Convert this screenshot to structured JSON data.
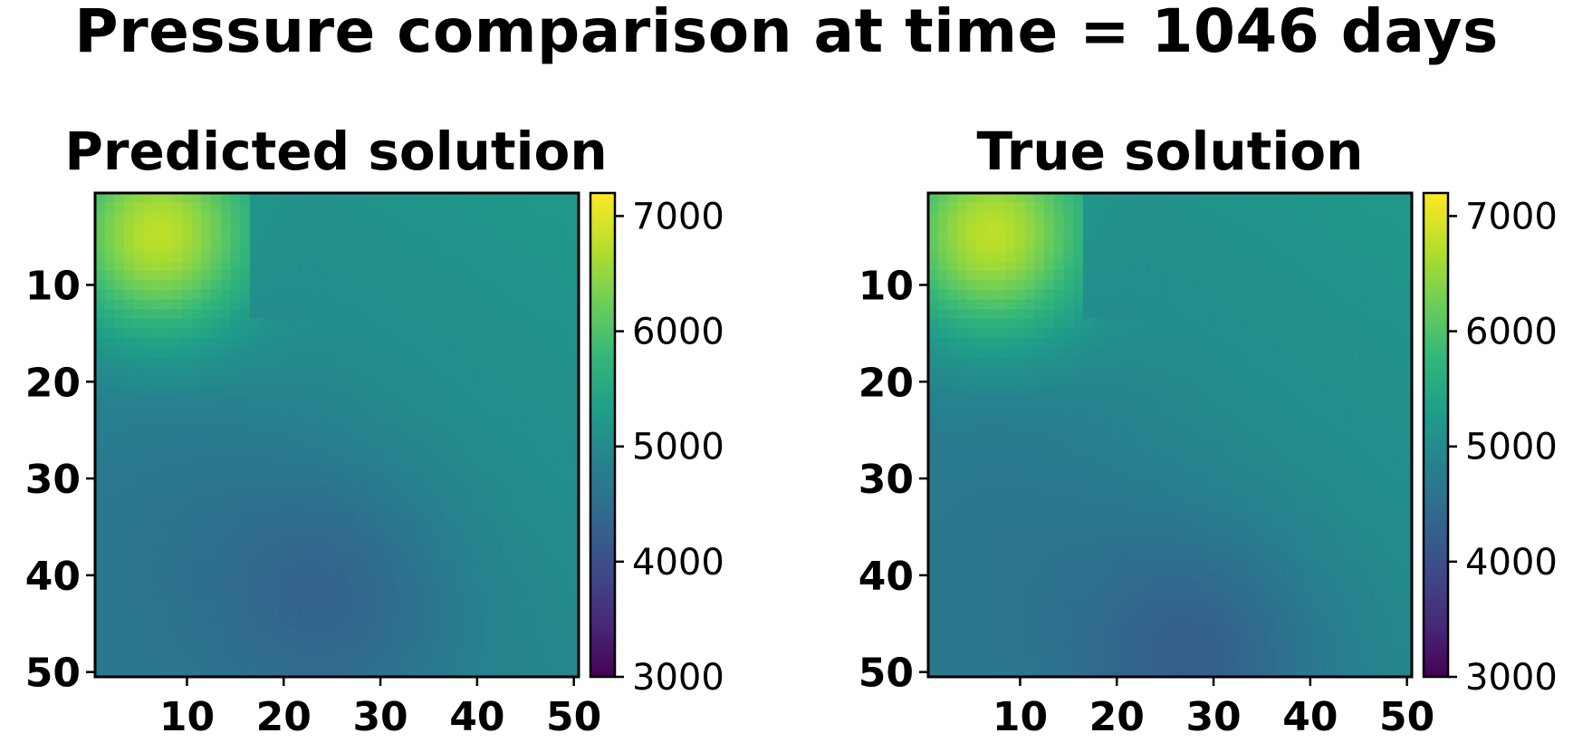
{
  "figure": {
    "title": "Pressure comparison at time = 1046 days"
  },
  "chart_data": [
    {
      "type": "heatmap",
      "title": "Predicted solution",
      "grid": [
        50,
        50
      ],
      "xlim": [
        1,
        50
      ],
      "ylim": [
        50,
        1
      ],
      "xticks": [
        10,
        20,
        30,
        40,
        50
      ],
      "yticks": [
        10,
        20,
        30,
        40,
        50
      ],
      "colorbar": {
        "cmap": "viridis",
        "range": [
          3000,
          7200
        ],
        "ticks": [
          3000,
          4000,
          5000,
          6000,
          7000
        ]
      },
      "field": {
        "background": 5000,
        "features": [
          {
            "kind": "high_region",
            "center": [
              7,
              5
            ],
            "peak": 6750,
            "note": "upper-left"
          },
          {
            "kind": "sharp_front",
            "column": 16.5,
            "rows": [
              1,
              13
            ]
          },
          {
            "kind": "low_region",
            "center": [
              25,
              42
            ],
            "value": 4500
          }
        ]
      }
    },
    {
      "type": "heatmap",
      "title": "True solution",
      "grid": [
        50,
        50
      ],
      "xlim": [
        1,
        50
      ],
      "ylim": [
        50,
        1
      ],
      "xticks": [
        10,
        20,
        30,
        40,
        50
      ],
      "yticks": [
        10,
        20,
        30,
        40,
        50
      ],
      "colorbar": {
        "cmap": "viridis",
        "range": [
          3000,
          7200
        ],
        "ticks": [
          3000,
          4000,
          5000,
          6000,
          7000
        ]
      },
      "field": {
        "background": 5000,
        "features": [
          {
            "kind": "high_region",
            "center": [
              7,
              5
            ],
            "peak": 6750
          },
          {
            "kind": "sharp_front",
            "column": 16.5,
            "rows": [
              1,
              13
            ]
          },
          {
            "kind": "low_region",
            "center": [
              28,
              48
            ],
            "value": 4400
          }
        ]
      }
    }
  ]
}
